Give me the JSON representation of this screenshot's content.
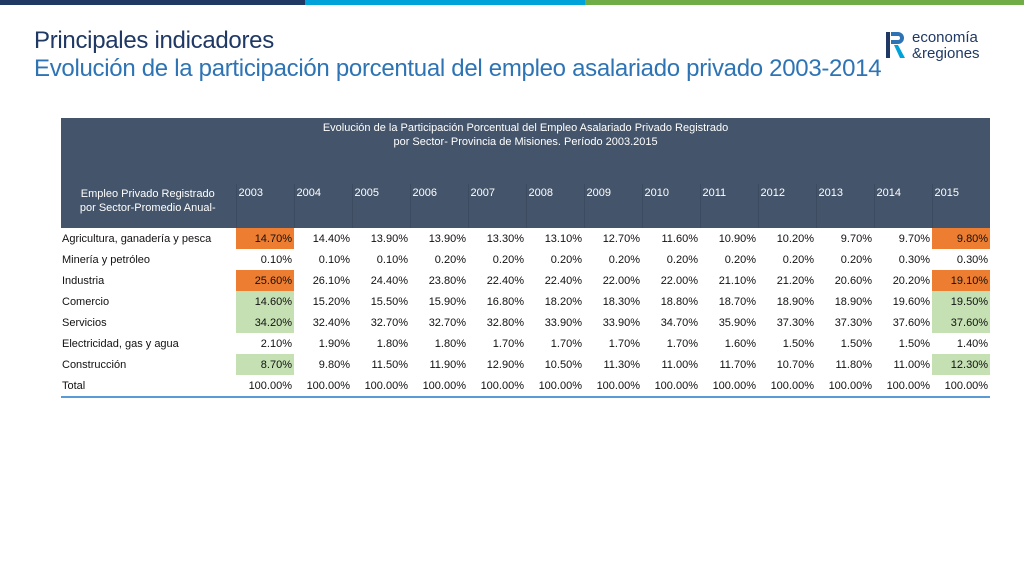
{
  "colors": {
    "orange": "#ed7d31",
    "green": "#c5e0b3",
    "header_bg": "#44546a"
  },
  "title": {
    "line1": "Principales indicadores",
    "line2": "Evolución de la participación porcentual del empleo asalariado privado 2003-2014"
  },
  "logo": {
    "line1": "economía",
    "line2": "&regiones",
    "icon": "R-brand-icon"
  },
  "table": {
    "caption_line1": "Evolución de la Participación Porcentual del Empleo Asalariado Privado Registrado",
    "caption_line2": "por Sector- Provincia de Misiones. Período 2003.2015",
    "first_col_header_line1": "Empleo Privado Registrado",
    "first_col_header_line2": "por Sector-Promedio Anual-",
    "years": [
      "2003",
      "2004",
      "2005",
      "2006",
      "2007",
      "2008",
      "2009",
      "2010",
      "2011",
      "2012",
      "2013",
      "2014",
      "2015"
    ],
    "rows": [
      {
        "label": "Agricultura, ganadería y pesca",
        "values": [
          "14.70%",
          "14.40%",
          "13.90%",
          "13.90%",
          "13.30%",
          "13.10%",
          "12.70%",
          "11.60%",
          "10.90%",
          "10.20%",
          "9.70%",
          "9.70%",
          "9.80%"
        ],
        "highlight_2003": "orange",
        "highlight_2015": "orange"
      },
      {
        "label": "Minería y petróleo",
        "values": [
          "0.10%",
          "0.10%",
          "0.10%",
          "0.20%",
          "0.20%",
          "0.20%",
          "0.20%",
          "0.20%",
          "0.20%",
          "0.20%",
          "0.20%",
          "0.30%",
          "0.30%"
        ],
        "highlight_2003": "",
        "highlight_2015": ""
      },
      {
        "label": "Industria",
        "values": [
          "25.60%",
          "26.10%",
          "24.40%",
          "23.80%",
          "22.40%",
          "22.40%",
          "22.00%",
          "22.00%",
          "21.10%",
          "21.20%",
          "20.60%",
          "20.20%",
          "19.10%"
        ],
        "highlight_2003": "orange",
        "highlight_2015": "orange"
      },
      {
        "label": "Comercio",
        "values": [
          "14.60%",
          "15.20%",
          "15.50%",
          "15.90%",
          "16.80%",
          "18.20%",
          "18.30%",
          "18.80%",
          "18.70%",
          "18.90%",
          "18.90%",
          "19.60%",
          "19.50%"
        ],
        "highlight_2003": "green",
        "highlight_2015": "green"
      },
      {
        "label": "Servicios",
        "values": [
          "34.20%",
          "32.40%",
          "32.70%",
          "32.70%",
          "32.80%",
          "33.90%",
          "33.90%",
          "34.70%",
          "35.90%",
          "37.30%",
          "37.30%",
          "37.60%",
          "37.60%"
        ],
        "highlight_2003": "green",
        "highlight_2015": "green"
      },
      {
        "label": "Electricidad, gas y agua",
        "values": [
          "2.10%",
          "1.90%",
          "1.80%",
          "1.80%",
          "1.70%",
          "1.70%",
          "1.70%",
          "1.70%",
          "1.60%",
          "1.50%",
          "1.50%",
          "1.50%",
          "1.40%"
        ],
        "highlight_2003": "",
        "highlight_2015": ""
      },
      {
        "label": "Construcción",
        "values": [
          "8.70%",
          "9.80%",
          "11.50%",
          "11.90%",
          "12.90%",
          "10.50%",
          "11.30%",
          "11.00%",
          "11.70%",
          "10.70%",
          "11.80%",
          "11.00%",
          "12.30%"
        ],
        "highlight_2003": "green",
        "highlight_2015": "green"
      },
      {
        "label": "Total",
        "values": [
          "100.00%",
          "100.00%",
          "100.00%",
          "100.00%",
          "100.00%",
          "100.00%",
          "100.00%",
          "100.00%",
          "100.00%",
          "100.00%",
          "100.00%",
          "100.00%",
          "100.00%"
        ],
        "highlight_2003": "",
        "highlight_2015": ""
      }
    ]
  }
}
